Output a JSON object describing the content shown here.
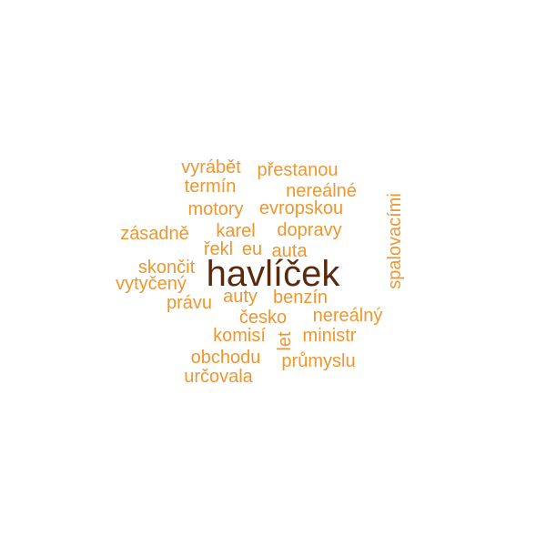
{
  "colors": {
    "main": "#5a2a0f",
    "secondary": "#f0962e",
    "background": "#ffffff"
  },
  "words": {
    "havlicek": "havlíček",
    "vyrabet": "vyrábět",
    "prestanou": "přestanou",
    "termin": "termín",
    "nerealne": "nereálné",
    "motory": "motory",
    "evropskou": "evropskou",
    "spalovacimi": "spalovacími",
    "zasadne": "zásadně",
    "karel": "karel",
    "dopravy": "dopravy",
    "rekl": "řekl",
    "eu": "eu",
    "auta": "auta",
    "skoncit": "skončit",
    "vytyceny": "vytyčený",
    "pravu": "právu",
    "auty": "auty",
    "benzin": "benzín",
    "cesko": "česko",
    "nerealny": "nereálný",
    "komisi": "komisí",
    "let": "let",
    "ministr": "ministr",
    "obchodu": "obchodu",
    "prumyslu": "průmyslu",
    "urcovala": "určovala"
  }
}
